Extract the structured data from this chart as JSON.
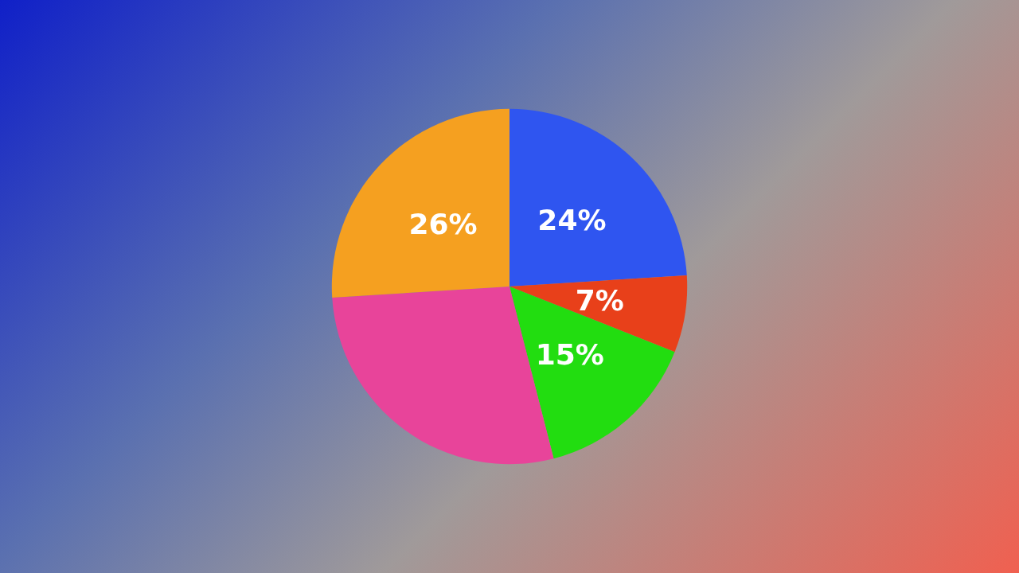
{
  "chart_data": {
    "type": "pie",
    "categories": [
      null,
      null,
      null,
      null,
      null
    ],
    "values": [
      24,
      7,
      15,
      28,
      26
    ],
    "colors": [
      "#2f55f0",
      "#e8401a",
      "#22dd10",
      "#e8449a",
      "#f5a020"
    ],
    "value_labels": [
      "24%",
      "7%",
      "15%",
      null,
      "26%"
    ]
  }
}
